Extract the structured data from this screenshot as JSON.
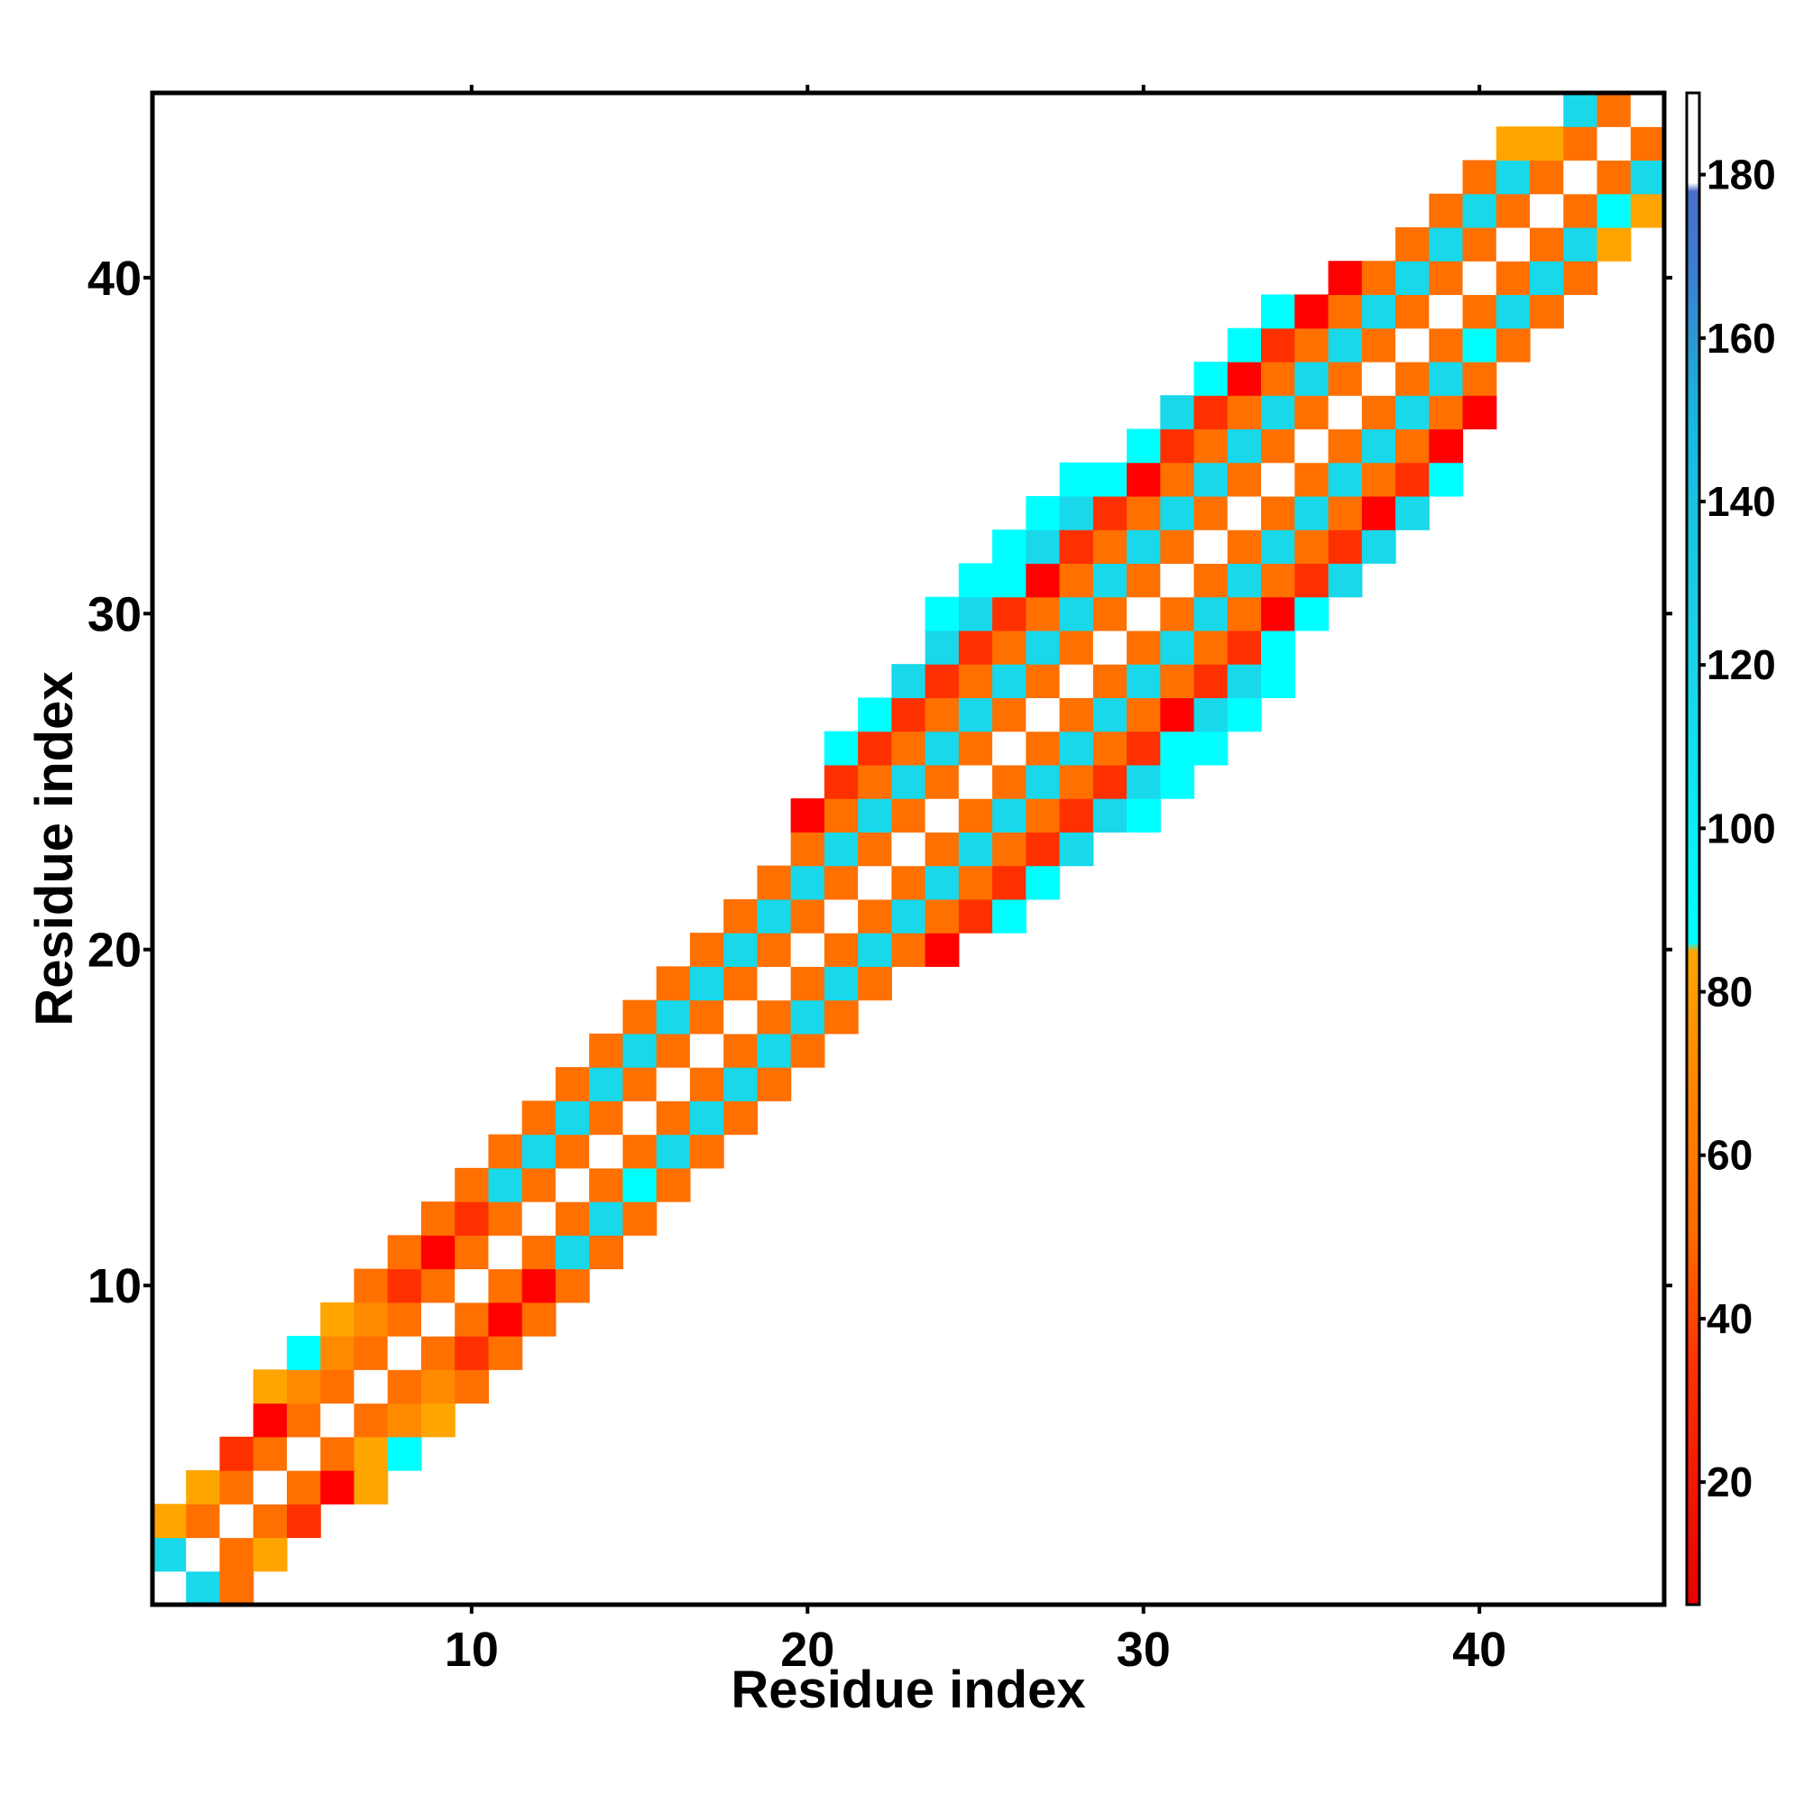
{
  "chart_data": {
    "type": "heatmap",
    "xlabel": "Residue index",
    "ylabel": "Residue index",
    "xlim": [
      0.5,
      45.5
    ],
    "ylim": [
      0.5,
      45.5
    ],
    "x_ticks": [
      10,
      20,
      30,
      40
    ],
    "y_ticks": [
      10,
      20,
      30,
      40
    ],
    "tick_labels": {
      "x": [
        "10",
        "20",
        "30",
        "40"
      ],
      "y": [
        "10",
        "20",
        "30",
        "40"
      ]
    },
    "grid": false,
    "colorbar": {
      "placement": "right",
      "range": [
        5,
        190
      ],
      "ticks": [
        20,
        40,
        60,
        80,
        100,
        120,
        140,
        160,
        180
      ],
      "tick_labels": [
        "20",
        "40",
        "60",
        "80",
        "100",
        "120",
        "140",
        "160",
        "180"
      ],
      "stops": [
        {
          "value": 5,
          "color": "#e60000"
        },
        {
          "value": 35,
          "color": "#ff3300"
        },
        {
          "value": 50,
          "color": "#ff6a00"
        },
        {
          "value": 65,
          "color": "#ff8000"
        },
        {
          "value": 85,
          "color": "#ffa500"
        },
        {
          "value": 86,
          "color": "#00ffff"
        },
        {
          "value": 120,
          "color": "#18d4e8"
        },
        {
          "value": 150,
          "color": "#19b7e0"
        },
        {
          "value": 168,
          "color": "#3a7fd0"
        },
        {
          "value": 178,
          "color": "#4a6fc8"
        },
        {
          "value": 179,
          "color": "#ffffff"
        },
        {
          "value": 190,
          "color": "#ffffff"
        }
      ]
    },
    "cell_colors": {
      "O": "#ff7000",
      "o": "#ff8a00",
      "A": "#ffa500",
      "R": "#ff0000",
      "r": "#ff3000",
      "C": "#18d8ea",
      "c": "#00ffff",
      "W": "#ffffff"
    },
    "rows": [
      {
        "y": 1,
        "x0": 1,
        "cells": "WCO"
      },
      {
        "y": 2,
        "x0": 1,
        "cells": "CWOA"
      },
      {
        "y": 3,
        "x0": 1,
        "cells": "AOWOr"
      },
      {
        "y": 4,
        "x0": 2,
        "cells": "AOWORA"
      },
      {
        "y": 5,
        "x0": 3,
        "cells": "rOWOAc"
      },
      {
        "y": 6,
        "x0": 4,
        "cells": "ROWOoA"
      },
      {
        "y": 7,
        "x0": 4,
        "cells": "AoOWOoO"
      },
      {
        "y": 8,
        "x0": 5,
        "cells": "coOWOrO"
      },
      {
        "y": 9,
        "x0": 6,
        "cells": "AoOWORO"
      },
      {
        "y": 10,
        "x0": 7,
        "cells": "OrOWORO"
      },
      {
        "y": 11,
        "x0": 8,
        "cells": "OROWOCO"
      },
      {
        "y": 12,
        "x0": 9,
        "cells": "OrOWOCO"
      },
      {
        "y": 13,
        "x0": 10,
        "cells": "OCOWOcO"
      },
      {
        "y": 14,
        "x0": 11,
        "cells": "OCOWOCO"
      },
      {
        "y": 15,
        "x0": 12,
        "cells": "OCOWOCO"
      },
      {
        "y": 16,
        "x0": 13,
        "cells": "OCOWOCO"
      },
      {
        "y": 17,
        "x0": 14,
        "cells": "OCOWOCO"
      },
      {
        "y": 18,
        "x0": 15,
        "cells": "OCOWOCO"
      },
      {
        "y": 19,
        "x0": 16,
        "cells": "OCOWOCO"
      },
      {
        "y": 20,
        "x0": 17,
        "cells": "OCOWOCOR"
      },
      {
        "y": 21,
        "x0": 18,
        "cells": "OCOWOCOrc"
      },
      {
        "y": 22,
        "x0": 19,
        "cells": "OCOWOCOrc"
      },
      {
        "y": 23,
        "x0": 20,
        "cells": "OCOWOCOrC"
      },
      {
        "y": 24,
        "x0": 20,
        "cells": "ROCOWOCOrCc"
      },
      {
        "y": 25,
        "x0": 21,
        "cells": "rOCOWOCOrCc"
      },
      {
        "y": 26,
        "x0": 21,
        "cells": "crOCOWOCOrcc"
      },
      {
        "y": 27,
        "x0": 22,
        "cells": "crOCOWOCORCc"
      },
      {
        "y": 28,
        "x0": 23,
        "cells": "CrOCOWOCOrCc"
      },
      {
        "y": 29,
        "x0": 24,
        "cells": "CrOCOWOCOrc"
      },
      {
        "y": 30,
        "x0": 24,
        "cells": "cCrOCOWOCORc"
      },
      {
        "y": 31,
        "x0": 25,
        "cells": "ccROCOWOCOrC"
      },
      {
        "y": 32,
        "x0": 26,
        "cells": "cCrOCOWOCOrC"
      },
      {
        "y": 33,
        "x0": 27,
        "cells": "cCrOCOWOCORC"
      },
      {
        "y": 34,
        "x0": 28,
        "cells": "ccROCOWOCOrc"
      },
      {
        "y": 35,
        "x0": 30,
        "cells": "crOCOWOCOR"
      },
      {
        "y": 36,
        "x0": 31,
        "cells": "CrOCOWOCOR"
      },
      {
        "y": 37,
        "x0": 32,
        "cells": "cROCOWOCO"
      },
      {
        "y": 38,
        "x0": 33,
        "cells": "crOCOWOcO"
      },
      {
        "y": 39,
        "x0": 34,
        "cells": "cROCOWOCO"
      },
      {
        "y": 40,
        "x0": 36,
        "cells": "ROCOWOCO"
      },
      {
        "y": 41,
        "x0": 38,
        "cells": "OCOWOCA"
      },
      {
        "y": 42,
        "x0": 39,
        "cells": "OCOWOcA"
      },
      {
        "y": 43,
        "x0": 40,
        "cells": "OCOWOC"
      },
      {
        "y": 44,
        "x0": 41,
        "cells": "AAOWO"
      },
      {
        "y": 45,
        "x0": 43,
        "cells": "COW"
      }
    ]
  }
}
